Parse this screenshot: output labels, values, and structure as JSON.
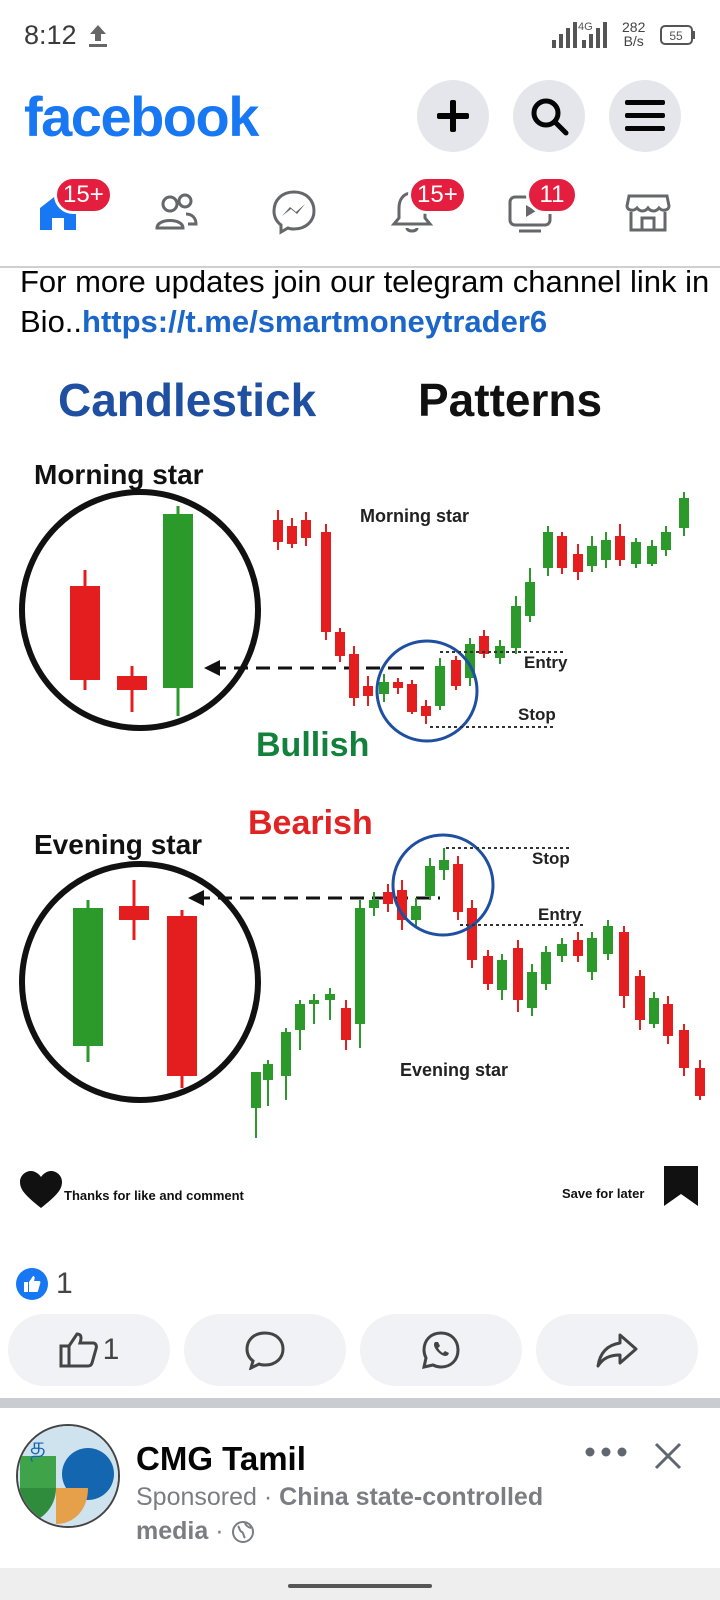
{
  "status_bar": {
    "time": "8:12",
    "net_speed_value": "282",
    "net_speed_unit": "B/s",
    "battery": "55"
  },
  "header": {
    "brand": "facebook",
    "icons": [
      "plus-icon",
      "search-icon",
      "menu-icon"
    ]
  },
  "nav": {
    "items": [
      {
        "name": "home",
        "badge": "15+"
      },
      {
        "name": "friends",
        "badge": ""
      },
      {
        "name": "messenger",
        "badge": ""
      },
      {
        "name": "notifications",
        "badge": "15+"
      },
      {
        "name": "video",
        "badge": "11"
      },
      {
        "name": "marketplace",
        "badge": ""
      }
    ],
    "accent": "#1877f2",
    "badge_color": "#e41e3f"
  },
  "post": {
    "text": "For more updates join our telegram channel link in Bio..",
    "link": "https://t.me/smartmoneytrader6"
  },
  "infographic": {
    "title_a": "Candlestick",
    "title_b": "Patterns",
    "morning_title": "Morning star",
    "morning_chart_label": "Morning star",
    "entry_label": "Entry",
    "stop_label": "Stop",
    "bullish": "Bullish",
    "evening_title": "Evening star",
    "bearish": "Bearish",
    "evening_chart_label": "Evening star",
    "thanks": "Thanks for like and comment",
    "save": "Save for later",
    "colors": {
      "bull": "#2b9a2b",
      "bear": "#e41e1e",
      "title_blue": "#1f4fa0",
      "bullish_green": "#12813b",
      "bearish_red": "#e02424"
    }
  },
  "reactions": {
    "count": "1"
  },
  "actions": {
    "like_count": "1"
  },
  "sponsored": {
    "page_name": "CMG Tamil",
    "sponsored_label": "Sponsored",
    "separator": "·",
    "tag": "China state-controlled media",
    "avatar_glyph": "த"
  }
}
